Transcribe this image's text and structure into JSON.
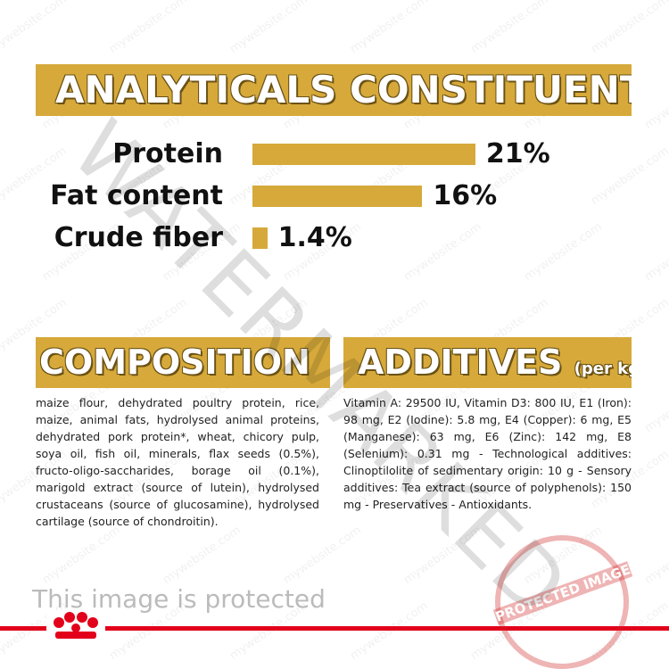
{
  "header": {
    "title": "ANALYTICALS CONSTITUENTS"
  },
  "analytics": {
    "color": "#d6a93a",
    "items": [
      {
        "label": "Protein",
        "value": 21,
        "value_label": "21%"
      },
      {
        "label": "Fat content",
        "value": 16,
        "value_label": "16%"
      },
      {
        "label": "Crude fiber",
        "value": 1.4,
        "value_label": "1.4%"
      }
    ]
  },
  "composition": {
    "title": "COMPOSITION",
    "text": "maize flour, dehydrated poultry protein, rice, maize, animal fats, hydrolysed animal proteins, dehydrated pork protein*, wheat, chicory pulp, soya oil, fish oil, minerals, flax seeds (0.5%), fructo-oligo-saccharides, borage oil (0.1%), marigold extract (source of lutein), hydrolysed crustaceans (source of glucosamine), hydrolysed cartilage (source of chondroitin)."
  },
  "additives": {
    "title": "ADDITIVES",
    "unit": "(per kg)",
    "text": "Vitamin A: 29500 IU, Vitamin D3: 800 IU, E1 (Iron): 98 mg, E2 (Iodine): 5.8 mg, E4 (Copper): 6 mg, E5 (Manganese): 63 mg, E6 (Zinc): 142 mg, E8 (Selenium): 0.31 mg - Technological additives: Clinoptilolite of sedimentary origin: 10 g - Sensory additives: Tea extract (source of polyphenols): 150 mg - Preservatives - Antioxidants."
  },
  "footer": {
    "notice": "This image is protected"
  },
  "watermark": {
    "text": "WATERMARKED",
    "site": "mywebsite.com",
    "stamp": "PROTECTED IMAGE"
  }
}
